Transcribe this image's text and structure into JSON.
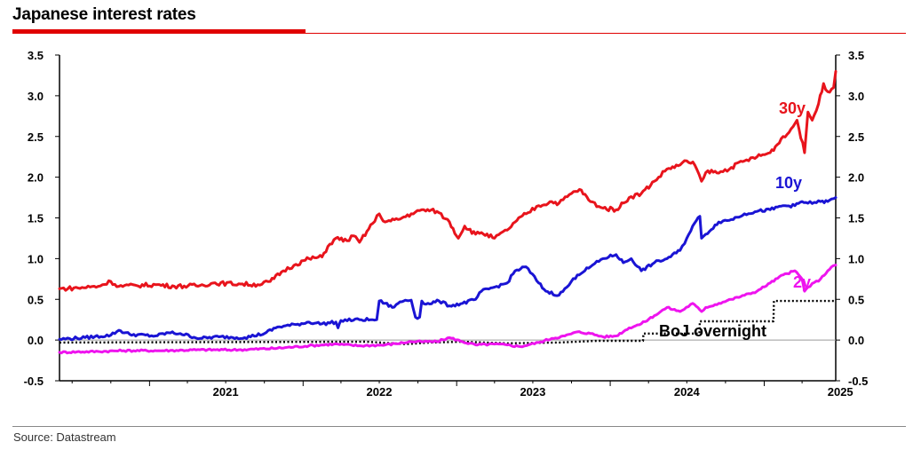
{
  "title": "Japanese interest rates",
  "source": "Source: Datastream",
  "chart_data": {
    "type": "line",
    "title": "Japanese interest rates",
    "xlabel": "",
    "ylabel": "",
    "ylim": [
      -0.5,
      3.5
    ],
    "x_range": [
      "2020-06-01",
      "2025-06-20"
    ],
    "yticks": [
      "3.5",
      "3.0",
      "2.5",
      "2.0",
      "1.5",
      "1.0",
      "0.5",
      "0.0",
      "-0.5"
    ],
    "xticks": [
      "2021",
      "2022",
      "2023",
      "2024",
      "2025"
    ],
    "grid": false,
    "dual_axis": true,
    "series": [
      {
        "name": "30y",
        "color": "#e8141c",
        "style": "solid",
        "points": [
          [
            "2020-06-01",
            0.63
          ],
          [
            "2020-07-15",
            0.64
          ],
          [
            "2020-09-01",
            0.66
          ],
          [
            "2020-10-01",
            0.72
          ],
          [
            "2020-10-20",
            0.66
          ],
          [
            "2020-12-01",
            0.67
          ],
          [
            "2021-01-15",
            0.68
          ],
          [
            "2021-03-01",
            0.66
          ],
          [
            "2021-05-01",
            0.67
          ],
          [
            "2021-06-01",
            0.7
          ],
          [
            "2021-08-01",
            0.69
          ],
          [
            "2021-09-15",
            0.68
          ],
          [
            "2021-10-15",
            0.72
          ],
          [
            "2021-11-15",
            0.85
          ],
          [
            "2021-12-15",
            0.93
          ],
          [
            "2022-01-15",
            1.0
          ],
          [
            "2022-02-15",
            1.02
          ],
          [
            "2022-03-01",
            1.15
          ],
          [
            "2022-03-20",
            1.25
          ],
          [
            "2022-04-15",
            1.22
          ],
          [
            "2022-05-01",
            1.28
          ],
          [
            "2022-05-15",
            1.2
          ],
          [
            "2022-06-15",
            1.43
          ],
          [
            "2022-07-01",
            1.55
          ],
          [
            "2022-07-15",
            1.45
          ],
          [
            "2022-08-15",
            1.48
          ],
          [
            "2022-09-15",
            1.55
          ],
          [
            "2022-10-15",
            1.6
          ],
          [
            "2022-11-15",
            1.58
          ],
          [
            "2022-12-15",
            1.45
          ],
          [
            "2023-01-05",
            1.25
          ],
          [
            "2023-01-20",
            1.4
          ],
          [
            "2023-02-15",
            1.3
          ],
          [
            "2023-03-01",
            1.32
          ],
          [
            "2023-04-01",
            1.25
          ],
          [
            "2023-05-01",
            1.35
          ],
          [
            "2023-05-20",
            1.45
          ],
          [
            "2023-06-15",
            1.55
          ],
          [
            "2023-07-15",
            1.65
          ],
          [
            "2023-08-15",
            1.7
          ],
          [
            "2023-09-01",
            1.68
          ],
          [
            "2023-10-01",
            1.8
          ],
          [
            "2023-10-20",
            1.85
          ],
          [
            "2023-11-15",
            1.7
          ],
          [
            "2023-12-15",
            1.62
          ],
          [
            "2024-01-15",
            1.6
          ],
          [
            "2024-02-15",
            1.75
          ],
          [
            "2024-03-15",
            1.8
          ],
          [
            "2024-04-15",
            1.95
          ],
          [
            "2024-05-15",
            2.1
          ],
          [
            "2024-06-15",
            2.15
          ],
          [
            "2024-07-01",
            2.2
          ],
          [
            "2024-07-20",
            2.15
          ],
          [
            "2024-08-05",
            1.95
          ],
          [
            "2024-08-20",
            2.08
          ],
          [
            "2024-09-15",
            2.05
          ],
          [
            "2024-10-15",
            2.12
          ],
          [
            "2024-11-15",
            2.2
          ],
          [
            "2024-12-15",
            2.25
          ],
          [
            "2025-01-15",
            2.3
          ],
          [
            "2025-02-01",
            2.4
          ],
          [
            "2025-02-15",
            2.5
          ],
          [
            "2025-03-01",
            2.55
          ],
          [
            "2025-03-20",
            2.7
          ],
          [
            "2025-04-07",
            2.3
          ],
          [
            "2025-04-15",
            2.8
          ],
          [
            "2025-04-25",
            2.7
          ],
          [
            "2025-05-10",
            2.9
          ],
          [
            "2025-05-22",
            3.15
          ],
          [
            "2025-06-01",
            3.05
          ],
          [
            "2025-06-15",
            3.1
          ],
          [
            "2025-06-20",
            3.3
          ]
        ]
      },
      {
        "name": "10y",
        "color": "#1a14d4",
        "style": "solid",
        "points": [
          [
            "2020-06-01",
            0.01
          ],
          [
            "2020-08-01",
            0.03
          ],
          [
            "2020-10-01",
            0.06
          ],
          [
            "2020-10-20",
            0.12
          ],
          [
            "2020-11-15",
            0.07
          ],
          [
            "2021-01-15",
            0.05
          ],
          [
            "2021-02-15",
            0.09
          ],
          [
            "2021-03-15",
            0.08
          ],
          [
            "2021-05-01",
            0.02
          ],
          [
            "2021-06-15",
            0.04
          ],
          [
            "2021-08-15",
            0.03
          ],
          [
            "2021-10-01",
            0.08
          ],
          [
            "2021-11-01",
            0.16
          ],
          [
            "2021-12-15",
            0.19
          ],
          [
            "2022-01-15",
            0.22
          ],
          [
            "2022-02-15",
            0.2
          ],
          [
            "2022-03-20",
            0.22
          ],
          [
            "2022-03-25",
            0.15
          ],
          [
            "2022-04-01",
            0.24
          ],
          [
            "2022-05-15",
            0.25
          ],
          [
            "2022-06-15",
            0.25
          ],
          [
            "2022-06-25",
            0.25
          ],
          [
            "2022-07-01",
            0.48
          ],
          [
            "2022-07-15",
            0.45
          ],
          [
            "2022-08-01",
            0.4
          ],
          [
            "2022-08-15",
            0.45
          ],
          [
            "2022-09-01",
            0.49
          ],
          [
            "2022-09-15",
            0.49
          ],
          [
            "2022-09-25",
            0.28
          ],
          [
            "2022-10-05",
            0.28
          ],
          [
            "2022-10-10",
            0.48
          ],
          [
            "2022-10-20",
            0.44
          ],
          [
            "2022-11-20",
            0.48
          ],
          [
            "2022-12-15",
            0.42
          ],
          [
            "2023-01-15",
            0.45
          ],
          [
            "2023-02-15",
            0.5
          ],
          [
            "2023-03-01",
            0.6
          ],
          [
            "2023-04-01",
            0.65
          ],
          [
            "2023-05-01",
            0.7
          ],
          [
            "2023-05-20",
            0.85
          ],
          [
            "2023-06-15",
            0.9
          ],
          [
            "2023-07-15",
            0.7
          ],
          [
            "2023-08-01",
            0.6
          ],
          [
            "2023-09-01",
            0.55
          ],
          [
            "2023-09-20",
            0.65
          ],
          [
            "2023-10-15",
            0.8
          ],
          [
            "2023-11-15",
            0.9
          ],
          [
            "2023-12-15",
            1.0
          ],
          [
            "2024-01-15",
            1.05
          ],
          [
            "2024-02-01",
            0.95
          ],
          [
            "2024-02-20",
            1.0
          ],
          [
            "2024-03-15",
            0.85
          ],
          [
            "2024-04-15",
            0.95
          ],
          [
            "2024-05-15",
            1.0
          ],
          [
            "2024-06-15",
            1.1
          ],
          [
            "2024-07-01",
            1.25
          ],
          [
            "2024-07-15",
            1.4
          ],
          [
            "2024-08-01",
            1.52
          ],
          [
            "2024-08-05",
            1.25
          ],
          [
            "2024-08-15",
            1.3
          ],
          [
            "2024-09-15",
            1.45
          ],
          [
            "2024-10-15",
            1.48
          ],
          [
            "2024-11-15",
            1.55
          ],
          [
            "2024-12-15",
            1.58
          ],
          [
            "2025-01-15",
            1.6
          ],
          [
            "2025-02-15",
            1.65
          ],
          [
            "2025-03-15",
            1.65
          ],
          [
            "2025-04-01",
            1.7
          ],
          [
            "2025-04-15",
            1.68
          ],
          [
            "2025-05-15",
            1.7
          ],
          [
            "2025-06-01",
            1.7
          ],
          [
            "2025-06-20",
            1.75
          ]
        ]
      },
      {
        "name": "2y",
        "color": "#ee14ee",
        "style": "solid",
        "points": [
          [
            "2020-06-01",
            -0.15
          ],
          [
            "2020-09-01",
            -0.14
          ],
          [
            "2020-11-01",
            -0.13
          ],
          [
            "2021-02-01",
            -0.13
          ],
          [
            "2021-05-01",
            -0.12
          ],
          [
            "2021-08-01",
            -0.12
          ],
          [
            "2021-11-01",
            -0.1
          ],
          [
            "2022-01-15",
            -0.07
          ],
          [
            "2022-03-15",
            -0.05
          ],
          [
            "2022-05-15",
            -0.07
          ],
          [
            "2022-07-15",
            -0.06
          ],
          [
            "2022-09-15",
            -0.02
          ],
          [
            "2022-10-15",
            -0.02
          ],
          [
            "2022-11-15",
            -0.02
          ],
          [
            "2022-12-15",
            0.03
          ],
          [
            "2023-01-15",
            -0.02
          ],
          [
            "2023-02-15",
            -0.06
          ],
          [
            "2023-04-01",
            -0.05
          ],
          [
            "2023-05-01",
            -0.06
          ],
          [
            "2023-06-01",
            -0.08
          ],
          [
            "2023-07-15",
            -0.03
          ],
          [
            "2023-08-15",
            0.02
          ],
          [
            "2023-09-15",
            0.05
          ],
          [
            "2023-10-15",
            0.1
          ],
          [
            "2023-11-15",
            0.08
          ],
          [
            "2023-12-15",
            0.04
          ],
          [
            "2024-01-15",
            0.05
          ],
          [
            "2024-02-15",
            0.15
          ],
          [
            "2024-03-15",
            0.2
          ],
          [
            "2024-04-15",
            0.3
          ],
          [
            "2024-05-15",
            0.4
          ],
          [
            "2024-06-15",
            0.35
          ],
          [
            "2024-07-15",
            0.45
          ],
          [
            "2024-08-05",
            0.35
          ],
          [
            "2024-08-15",
            0.4
          ],
          [
            "2024-09-15",
            0.45
          ],
          [
            "2024-10-15",
            0.5
          ],
          [
            "2024-11-15",
            0.55
          ],
          [
            "2024-12-15",
            0.6
          ],
          [
            "2025-01-15",
            0.7
          ],
          [
            "2025-02-15",
            0.8
          ],
          [
            "2025-03-15",
            0.85
          ],
          [
            "2025-04-01",
            0.75
          ],
          [
            "2025-04-07",
            0.6
          ],
          [
            "2025-04-15",
            0.65
          ],
          [
            "2025-05-15",
            0.75
          ],
          [
            "2025-06-01",
            0.85
          ],
          [
            "2025-06-10",
            0.9
          ],
          [
            "2025-06-20",
            0.92
          ]
        ]
      },
      {
        "name": "BoJ overnight",
        "color": "#000000",
        "style": "dotted",
        "points": [
          [
            "2020-06-01",
            -0.03
          ],
          [
            "2022-06-01",
            -0.02
          ],
          [
            "2022-09-01",
            -0.05
          ],
          [
            "2022-11-01",
            -0.03
          ],
          [
            "2023-01-15",
            -0.02
          ],
          [
            "2023-05-01",
            -0.04
          ],
          [
            "2023-09-01",
            -0.03
          ],
          [
            "2023-12-01",
            -0.01
          ],
          [
            "2024-03-19",
            -0.01
          ],
          [
            "2024-03-20",
            0.08
          ],
          [
            "2024-07-31",
            0.08
          ],
          [
            "2024-08-01",
            0.23
          ],
          [
            "2025-01-23",
            0.23
          ],
          [
            "2025-01-24",
            0.48
          ],
          [
            "2025-06-20",
            0.48
          ]
        ]
      }
    ],
    "labels": {
      "s30y": "30y",
      "s10y": "10y",
      "s2y": "2y",
      "boj": "BoJ overnight"
    }
  }
}
